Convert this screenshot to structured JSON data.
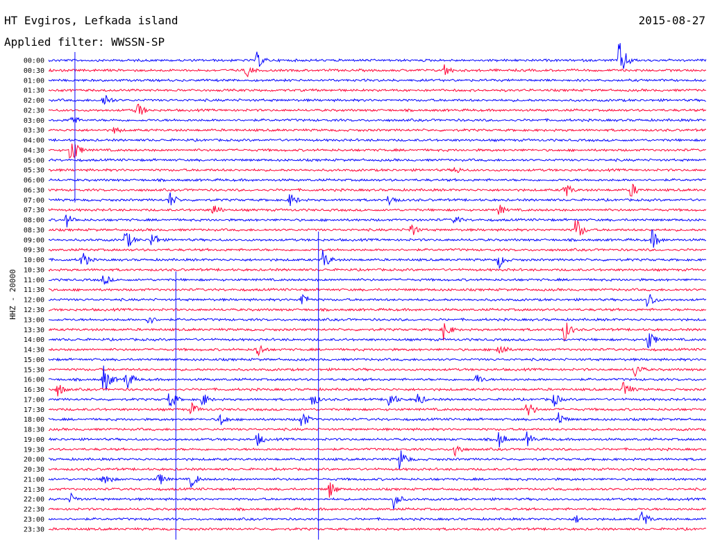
{
  "header": {
    "station": "HT Evgiros, Lefkada island",
    "filter": "Applied filter: WWSSN-SP",
    "date": "2015-08-27"
  },
  "channel_label": "HHZ - 20000",
  "chart_data": {
    "type": "line",
    "title": "HT Evgiros, Lefkada island",
    "subtitle": "Applied filter: WWSSN-SP",
    "ylabel": "HHZ - 20000",
    "xlabel": "",
    "grid": false,
    "rows": [
      {
        "label": "00:00",
        "color": "#0000ff"
      },
      {
        "label": "00:30",
        "color": "#ff0033"
      },
      {
        "label": "01:00",
        "color": "#0000ff"
      },
      {
        "label": "01:30",
        "color": "#ff0033"
      },
      {
        "label": "02:00",
        "color": "#0000ff"
      },
      {
        "label": "02:30",
        "color": "#ff0033"
      },
      {
        "label": "03:00",
        "color": "#0000ff"
      },
      {
        "label": "03:30",
        "color": "#ff0033"
      },
      {
        "label": "04:00",
        "color": "#0000ff"
      },
      {
        "label": "04:30",
        "color": "#ff0033"
      },
      {
        "label": "05:00",
        "color": "#0000ff"
      },
      {
        "label": "05:30",
        "color": "#ff0033"
      },
      {
        "label": "06:00",
        "color": "#0000ff"
      },
      {
        "label": "06:30",
        "color": "#ff0033"
      },
      {
        "label": "07:00",
        "color": "#0000ff"
      },
      {
        "label": "07:30",
        "color": "#ff0033"
      },
      {
        "label": "08:00",
        "color": "#0000ff"
      },
      {
        "label": "08:30",
        "color": "#ff0033"
      },
      {
        "label": "09:00",
        "color": "#0000ff"
      },
      {
        "label": "09:30",
        "color": "#ff0033"
      },
      {
        "label": "10:00",
        "color": "#0000ff"
      },
      {
        "label": "10:30",
        "color": "#ff0033"
      },
      {
        "label": "11:00",
        "color": "#0000ff"
      },
      {
        "label": "11:30",
        "color": "#ff0033"
      },
      {
        "label": "12:00",
        "color": "#0000ff"
      },
      {
        "label": "12:30",
        "color": "#ff0033"
      },
      {
        "label": "13:00",
        "color": "#0000ff"
      },
      {
        "label": "13:30",
        "color": "#ff0033"
      },
      {
        "label": "14:00",
        "color": "#0000ff"
      },
      {
        "label": "14:30",
        "color": "#ff0033"
      },
      {
        "label": "15:00",
        "color": "#0000ff"
      },
      {
        "label": "15:30",
        "color": "#ff0033"
      },
      {
        "label": "16:00",
        "color": "#0000ff"
      },
      {
        "label": "16:30",
        "color": "#ff0033"
      },
      {
        "label": "17:00",
        "color": "#0000ff"
      },
      {
        "label": "17:30",
        "color": "#ff0033"
      },
      {
        "label": "18:00",
        "color": "#0000ff"
      },
      {
        "label": "18:30",
        "color": "#ff0033"
      },
      {
        "label": "19:00",
        "color": "#0000ff"
      },
      {
        "label": "19:30",
        "color": "#ff0033"
      },
      {
        "label": "20:00",
        "color": "#0000ff"
      },
      {
        "label": "20:30",
        "color": "#ff0033"
      },
      {
        "label": "21:00",
        "color": "#0000ff"
      },
      {
        "label": "21:30",
        "color": "#ff0033"
      },
      {
        "label": "22:00",
        "color": "#0000ff"
      },
      {
        "label": "22:30",
        "color": "#ff0033"
      },
      {
        "label": "23:00",
        "color": "#0000ff"
      },
      {
        "label": "23:30",
        "color": "#ff0033"
      }
    ],
    "row_minutes": 30,
    "events": [
      {
        "row": 0,
        "minute": 9.5,
        "amplitude": 14
      },
      {
        "row": 0,
        "minute": 26,
        "amplitude": 32
      },
      {
        "row": 1,
        "minute": 9,
        "amplitude": 12
      },
      {
        "row": 1,
        "minute": 18,
        "amplitude": 12
      },
      {
        "row": 4,
        "minute": 2.5,
        "amplitude": 14
      },
      {
        "row": 5,
        "minute": 4,
        "amplitude": 16
      },
      {
        "row": 6,
        "minute": 1,
        "amplitude": 12
      },
      {
        "row": 7,
        "minute": 3,
        "amplitude": 8
      },
      {
        "row": 9,
        "minute": 1,
        "amplitude": 26
      },
      {
        "row": 11,
        "minute": 18.5,
        "amplitude": 8
      },
      {
        "row": 13,
        "minute": 23.5,
        "amplitude": 14
      },
      {
        "row": 13,
        "minute": 26.5,
        "amplitude": 14
      },
      {
        "row": 14,
        "minute": 5.5,
        "amplitude": 14
      },
      {
        "row": 14,
        "minute": 11,
        "amplitude": 12
      },
      {
        "row": 14,
        "minute": 15.5,
        "amplitude": 12
      },
      {
        "row": 15,
        "minute": 7.5,
        "amplitude": 12
      },
      {
        "row": 15,
        "minute": 20.5,
        "amplitude": 10
      },
      {
        "row": 16,
        "minute": 0.8,
        "amplitude": 12
      },
      {
        "row": 16,
        "minute": 18.5,
        "amplitude": 10
      },
      {
        "row": 17,
        "minute": 16.5,
        "amplitude": 12
      },
      {
        "row": 17,
        "minute": 24,
        "amplitude": 22
      },
      {
        "row": 18,
        "minute": 3.5,
        "amplitude": 18
      },
      {
        "row": 18,
        "minute": 4.7,
        "amplitude": 14
      },
      {
        "row": 18,
        "minute": 27.5,
        "amplitude": 16
      },
      {
        "row": 20,
        "minute": 1.5,
        "amplitude": 16
      },
      {
        "row": 20,
        "minute": 12.5,
        "amplitude": 16
      },
      {
        "row": 20,
        "minute": 20.5,
        "amplitude": 14
      },
      {
        "row": 22,
        "minute": 2.5,
        "amplitude": 10
      },
      {
        "row": 24,
        "minute": 11.5,
        "amplitude": 14
      },
      {
        "row": 24,
        "minute": 27.3,
        "amplitude": 16
      },
      {
        "row": 26,
        "minute": 4.5,
        "amplitude": 10
      },
      {
        "row": 27,
        "minute": 18,
        "amplitude": 16
      },
      {
        "row": 27,
        "minute": 23.5,
        "amplitude": 18
      },
      {
        "row": 28,
        "minute": 27.3,
        "amplitude": 18
      },
      {
        "row": 29,
        "minute": 9.5,
        "amplitude": 14
      },
      {
        "row": 29,
        "minute": 20.5,
        "amplitude": 14
      },
      {
        "row": 31,
        "minute": 26.7,
        "amplitude": 14
      },
      {
        "row": 32,
        "minute": 2.5,
        "amplitude": 24
      },
      {
        "row": 32,
        "minute": 3.5,
        "amplitude": 20
      },
      {
        "row": 32,
        "minute": 19.5,
        "amplitude": 10
      },
      {
        "row": 33,
        "minute": 0.4,
        "amplitude": 12
      },
      {
        "row": 33,
        "minute": 26.2,
        "amplitude": 16
      },
      {
        "row": 34,
        "minute": 5.5,
        "amplitude": 16
      },
      {
        "row": 34,
        "minute": 7,
        "amplitude": 12
      },
      {
        "row": 34,
        "minute": 12,
        "amplitude": 12
      },
      {
        "row": 34,
        "minute": 15.5,
        "amplitude": 16
      },
      {
        "row": 34,
        "minute": 16.8,
        "amplitude": 12
      },
      {
        "row": 34,
        "minute": 23,
        "amplitude": 12
      },
      {
        "row": 35,
        "minute": 6.5,
        "amplitude": 12
      },
      {
        "row": 35,
        "minute": 21.8,
        "amplitude": 16
      },
      {
        "row": 36,
        "minute": 7.8,
        "amplitude": 12
      },
      {
        "row": 36,
        "minute": 11.5,
        "amplitude": 16
      },
      {
        "row": 36,
        "minute": 23.2,
        "amplitude": 14
      },
      {
        "row": 38,
        "minute": 9.5,
        "amplitude": 12
      },
      {
        "row": 38,
        "minute": 20.5,
        "amplitude": 14
      },
      {
        "row": 38,
        "minute": 21.8,
        "amplitude": 12
      },
      {
        "row": 39,
        "minute": 18.5,
        "amplitude": 14
      },
      {
        "row": 40,
        "minute": 16,
        "amplitude": 18
      },
      {
        "row": 42,
        "minute": 2.5,
        "amplitude": 14
      },
      {
        "row": 42,
        "minute": 5,
        "amplitude": 12
      },
      {
        "row": 42,
        "minute": 6.5,
        "amplitude": 14
      },
      {
        "row": 43,
        "minute": 12.8,
        "amplitude": 14
      },
      {
        "row": 44,
        "minute": 1,
        "amplitude": 10
      },
      {
        "row": 44,
        "minute": 15.7,
        "amplitude": 16
      },
      {
        "row": 46,
        "minute": 24,
        "amplitude": 8
      },
      {
        "row": 46,
        "minute": 27,
        "amplitude": 16
      }
    ],
    "vertical_spikes": [
      {
        "minute": 1.2,
        "start_row": 0,
        "end_row": 13
      },
      {
        "minute": 5.8,
        "start_row": 22,
        "end_row": 47
      },
      {
        "minute": 12.3,
        "start_row": 18,
        "end_row": 47
      }
    ]
  }
}
